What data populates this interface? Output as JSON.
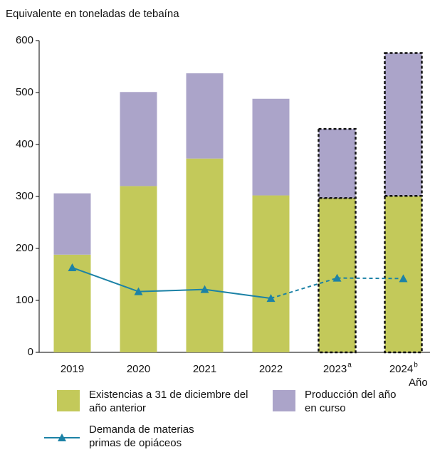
{
  "chart_data": {
    "type": "bar",
    "stacked": true,
    "y_axis_label": "Equivalente en toneladas de tebaína",
    "x_axis_label": "Año",
    "categories": [
      "2019",
      "2020",
      "2021",
      "2022",
      "2023",
      "2024"
    ],
    "category_superscripts": {
      "4": "a",
      "5": "b"
    },
    "dashed": [
      false,
      false,
      false,
      false,
      true,
      true
    ],
    "ylim": [
      0,
      600
    ],
    "yticks": [
      0,
      100,
      200,
      300,
      400,
      500,
      600
    ],
    "series": [
      {
        "name": "Existencias a 31 de diciembre del año anterior",
        "color": "#c3c95a",
        "values": [
          188,
          320,
          373,
          302,
          297,
          301
        ]
      },
      {
        "name": "Producción del año en curso",
        "color": "#aba4c9",
        "values": [
          118,
          181,
          164,
          186,
          133,
          275
        ]
      },
      {
        "name": "Demanda de materias primas de opiáceos",
        "type": "line",
        "color": "#1c82a6",
        "values": [
          163,
          117,
          121,
          104,
          143,
          142
        ]
      }
    ]
  }
}
